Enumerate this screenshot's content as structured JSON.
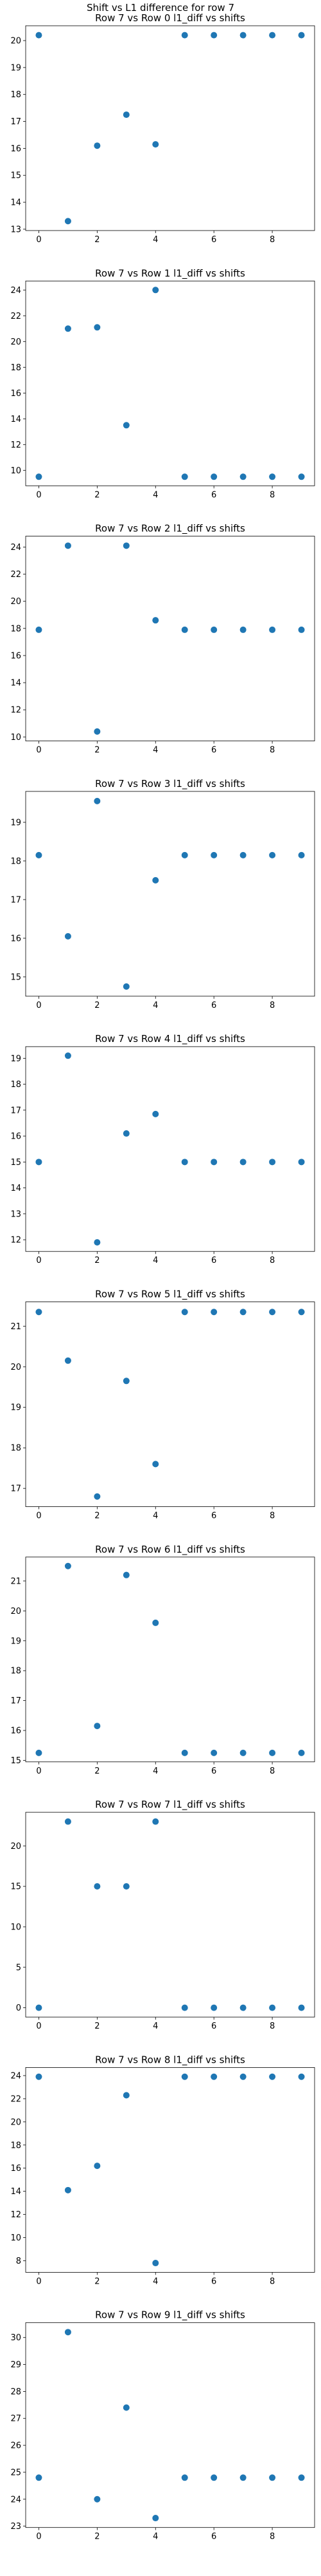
{
  "figure": {
    "suptitle": "Shift vs L1 difference for row 7"
  },
  "chart_data": [
    {
      "type": "scatter",
      "title": "Row 7 vs Row 0 l1_diff vs shifts",
      "x": [
        0,
        1,
        2,
        3,
        4,
        5,
        6,
        7,
        8,
        9
      ],
      "y": [
        20.2,
        13.3,
        16.1,
        17.25,
        16.15,
        20.2,
        20.2,
        20.2,
        20.2,
        20.2
      ],
      "xlim": [
        -0.45,
        9.45
      ],
      "ylim": [
        12.95,
        20.55
      ],
      "xticks": [
        0,
        2,
        4,
        6,
        8
      ],
      "yticks": [
        13,
        14,
        15,
        16,
        17,
        18,
        19,
        20
      ],
      "grid": false,
      "color": "#1f77b4"
    },
    {
      "type": "scatter",
      "title": "Row 7 vs Row 1 l1_diff vs shifts",
      "x": [
        0,
        1,
        2,
        3,
        4,
        5,
        6,
        7,
        8,
        9
      ],
      "y": [
        9.5,
        21.0,
        21.1,
        13.5,
        24.0,
        9.5,
        9.5,
        9.5,
        9.5,
        9.5
      ],
      "xlim": [
        -0.45,
        9.45
      ],
      "ylim": [
        8.8,
        24.7
      ],
      "xticks": [
        0,
        2,
        4,
        6,
        8
      ],
      "yticks": [
        10,
        12,
        14,
        16,
        18,
        20,
        22,
        24
      ],
      "grid": false,
      "color": "#1f77b4"
    },
    {
      "type": "scatter",
      "title": "Row 7 vs Row 2 l1_diff vs shifts",
      "x": [
        0,
        1,
        2,
        3,
        4,
        5,
        6,
        7,
        8,
        9
      ],
      "y": [
        17.9,
        24.1,
        10.4,
        24.1,
        18.6,
        17.9,
        17.9,
        17.9,
        17.9,
        17.9
      ],
      "xlim": [
        -0.45,
        9.45
      ],
      "ylim": [
        9.7,
        24.8
      ],
      "xticks": [
        0,
        2,
        4,
        6,
        8
      ],
      "yticks": [
        10,
        12,
        14,
        16,
        18,
        20,
        22,
        24
      ],
      "grid": false,
      "color": "#1f77b4"
    },
    {
      "type": "scatter",
      "title": "Row 7 vs Row 3 l1_diff vs shifts",
      "x": [
        0,
        1,
        2,
        3,
        4,
        5,
        6,
        7,
        8,
        9
      ],
      "y": [
        18.15,
        16.05,
        19.55,
        14.75,
        17.5,
        18.15,
        18.15,
        18.15,
        18.15,
        18.15
      ],
      "xlim": [
        -0.45,
        9.45
      ],
      "ylim": [
        14.5,
        19.8
      ],
      "xticks": [
        0,
        2,
        4,
        6,
        8
      ],
      "yticks": [
        15,
        16,
        17,
        18,
        19
      ],
      "grid": false,
      "color": "#1f77b4"
    },
    {
      "type": "scatter",
      "title": "Row 7 vs Row 4 l1_diff vs shifts",
      "x": [
        0,
        1,
        2,
        3,
        4,
        5,
        6,
        7,
        8,
        9
      ],
      "y": [
        15.0,
        19.1,
        11.9,
        16.1,
        16.85,
        15.0,
        15.0,
        15.0,
        15.0,
        15.0
      ],
      "xlim": [
        -0.45,
        9.45
      ],
      "ylim": [
        11.55,
        19.45
      ],
      "xticks": [
        0,
        2,
        4,
        6,
        8
      ],
      "yticks": [
        12,
        13,
        14,
        15,
        16,
        17,
        18,
        19
      ],
      "grid": false,
      "color": "#1f77b4"
    },
    {
      "type": "scatter",
      "title": "Row 7 vs Row 5 l1_diff vs shifts",
      "x": [
        0,
        1,
        2,
        3,
        4,
        5,
        6,
        7,
        8,
        9
      ],
      "y": [
        21.35,
        20.15,
        16.8,
        19.65,
        17.6,
        21.35,
        21.35,
        21.35,
        21.35,
        21.35
      ],
      "xlim": [
        -0.45,
        9.45
      ],
      "ylim": [
        16.55,
        21.6
      ],
      "xticks": [
        0,
        2,
        4,
        6,
        8
      ],
      "yticks": [
        17,
        18,
        19,
        20,
        21
      ],
      "grid": false,
      "color": "#1f77b4"
    },
    {
      "type": "scatter",
      "title": "Row 7 vs Row 6 l1_diff vs shifts",
      "x": [
        0,
        1,
        2,
        3,
        4,
        5,
        6,
        7,
        8,
        9
      ],
      "y": [
        15.25,
        21.5,
        16.15,
        21.2,
        19.6,
        15.25,
        15.25,
        15.25,
        15.25,
        15.25
      ],
      "xlim": [
        -0.45,
        9.45
      ],
      "ylim": [
        14.95,
        21.8
      ],
      "xticks": [
        0,
        2,
        4,
        6,
        8
      ],
      "yticks": [
        15,
        16,
        17,
        18,
        19,
        20,
        21
      ],
      "grid": false,
      "color": "#1f77b4"
    },
    {
      "type": "scatter",
      "title": "Row 7 vs Row 7 l1_diff vs shifts",
      "x": [
        0,
        1,
        2,
        3,
        4,
        5,
        6,
        7,
        8,
        9
      ],
      "y": [
        0,
        23.0,
        15.0,
        15.0,
        23.0,
        0,
        0,
        0,
        0,
        0
      ],
      "xlim": [
        -0.45,
        9.45
      ],
      "ylim": [
        -1.15,
        24.15
      ],
      "xticks": [
        0,
        2,
        4,
        6,
        8
      ],
      "yticks": [
        0,
        5,
        10,
        15,
        20
      ],
      "grid": false,
      "color": "#1f77b4"
    },
    {
      "type": "scatter",
      "title": "Row 7 vs Row 8 l1_diff vs shifts",
      "x": [
        0,
        1,
        2,
        3,
        4,
        5,
        6,
        7,
        8,
        9
      ],
      "y": [
        23.9,
        14.1,
        16.2,
        22.3,
        7.8,
        23.9,
        23.9,
        23.9,
        23.9,
        23.9
      ],
      "xlim": [
        -0.45,
        9.45
      ],
      "ylim": [
        7.0,
        24.7
      ],
      "xticks": [
        0,
        2,
        4,
        6,
        8
      ],
      "yticks": [
        8,
        10,
        12,
        14,
        16,
        18,
        20,
        22,
        24
      ],
      "grid": false,
      "color": "#1f77b4"
    },
    {
      "type": "scatter",
      "title": "Row 7 vs Row 9 l1_diff vs shifts",
      "x": [
        0,
        1,
        2,
        3,
        4,
        5,
        6,
        7,
        8,
        9
      ],
      "y": [
        24.8,
        30.2,
        24.0,
        27.4,
        23.3,
        24.8,
        24.8,
        24.8,
        24.8,
        24.8
      ],
      "xlim": [
        -0.45,
        9.45
      ],
      "ylim": [
        22.95,
        30.55
      ],
      "xticks": [
        0,
        2,
        4,
        6,
        8
      ],
      "yticks": [
        23,
        24,
        25,
        26,
        27,
        28,
        29,
        30
      ],
      "grid": false,
      "color": "#1f77b4"
    }
  ]
}
